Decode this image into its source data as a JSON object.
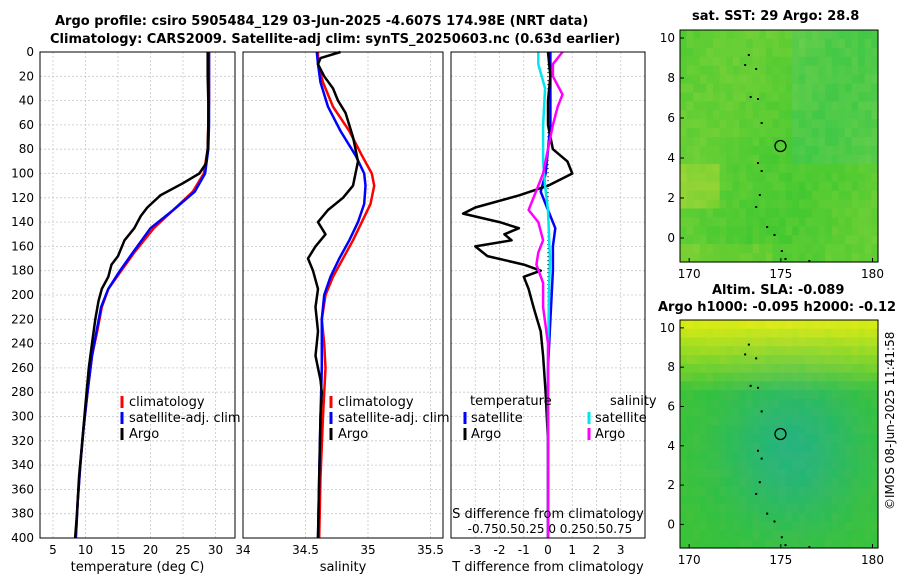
{
  "titles": {
    "line1": "Argo profile: csiro 5905484_129 03-Jun-2025 -4.607S 174.98E (NRT data)",
    "line2": "Climatology: CARS2009. Satellite-adj clim: synTS_20250603.nc (0.63d earlier)",
    "sst": "sat. SST: 29 Argo: 28.8",
    "sla1": "Altim. SLA: -0.089",
    "sla2": "Argo h1000: -0.095 h2000: -0.12"
  },
  "watermark": "©IMOS 08-Jun-2025 11:41:58",
  "colors": {
    "climatology": "#ff0000",
    "satellite": "#0000ff",
    "argo": "#000000",
    "sal_satellite": "#00e5ee",
    "sal_argo": "#ff00ff"
  },
  "chart_data": [
    {
      "type": "line",
      "name": "temperature",
      "xlabel": "temperature (deg C)",
      "xlim": [
        3,
        33
      ],
      "ylim": [
        0,
        400
      ],
      "xticks": [
        5,
        10,
        15,
        20,
        25,
        30
      ],
      "yticks": [
        0,
        20,
        40,
        60,
        80,
        100,
        120,
        140,
        160,
        180,
        200,
        220,
        240,
        260,
        280,
        300,
        320,
        340,
        360,
        380,
        400
      ],
      "legend": [
        "climatology",
        "satellite-adj. clim",
        "Argo"
      ],
      "series": [
        {
          "name": "climatology",
          "points": [
            [
              29.0,
              0
            ],
            [
              29.0,
              20
            ],
            [
              29.0,
              40
            ],
            [
              28.9,
              60
            ],
            [
              28.8,
              80
            ],
            [
              28.2,
              100
            ],
            [
              26.5,
              115
            ],
            [
              23.5,
              130
            ],
            [
              20.5,
              145
            ],
            [
              17.5,
              165
            ],
            [
              15.5,
              180
            ],
            [
              13.5,
              195
            ],
            [
              12.5,
              210
            ],
            [
              11.8,
              230
            ],
            [
              11.0,
              250
            ],
            [
              10.3,
              280
            ],
            [
              9.7,
              310
            ],
            [
              9.2,
              340
            ],
            [
              8.8,
              370
            ],
            [
              8.5,
              400
            ]
          ]
        },
        {
          "name": "satellite-adj. clim",
          "points": [
            [
              29.0,
              0
            ],
            [
              29.0,
              20
            ],
            [
              29.0,
              40
            ],
            [
              29.0,
              60
            ],
            [
              28.9,
              80
            ],
            [
              28.4,
              100
            ],
            [
              26.8,
              115
            ],
            [
              23.5,
              130
            ],
            [
              20.0,
              145
            ],
            [
              17.3,
              165
            ],
            [
              15.3,
              180
            ],
            [
              13.5,
              195
            ],
            [
              12.4,
              210
            ],
            [
              11.7,
              230
            ],
            [
              11.0,
              250
            ],
            [
              10.3,
              280
            ],
            [
              9.7,
              310
            ],
            [
              9.2,
              340
            ],
            [
              8.8,
              370
            ],
            [
              8.5,
              400
            ]
          ]
        },
        {
          "name": "Argo",
          "points": [
            [
              28.8,
              0
            ],
            [
              28.8,
              20
            ],
            [
              28.9,
              40
            ],
            [
              28.9,
              60
            ],
            [
              28.8,
              80
            ],
            [
              28.5,
              92
            ],
            [
              27.5,
              100
            ],
            [
              25.0,
              108
            ],
            [
              21.5,
              118
            ],
            [
              19.5,
              128
            ],
            [
              18.5,
              135
            ],
            [
              17.5,
              145
            ],
            [
              16.0,
              155
            ],
            [
              15.0,
              168
            ],
            [
              14.0,
              175
            ],
            [
              13.5,
              185
            ],
            [
              12.5,
              195
            ],
            [
              12.0,
              205
            ],
            [
              11.5,
              220
            ],
            [
              11.0,
              240
            ],
            [
              10.5,
              260
            ],
            [
              10.0,
              290
            ],
            [
              9.5,
              320
            ],
            [
              9.0,
              350
            ],
            [
              8.7,
              380
            ],
            [
              8.4,
              400
            ]
          ]
        }
      ]
    },
    {
      "type": "line",
      "name": "salinity",
      "xlabel": "salinity",
      "xlim": [
        34,
        35.6
      ],
      "ylim": [
        0,
        400
      ],
      "xticks": [
        34,
        34.5,
        35,
        35.5
      ],
      "yticks": [
        0,
        20,
        40,
        60,
        80,
        100,
        120,
        140,
        160,
        180,
        200,
        220,
        240,
        260,
        280,
        300,
        320,
        340,
        360,
        380,
        400
      ],
      "legend": [
        "climatology",
        "satellite-adj. clim",
        "Argo"
      ],
      "series": [
        {
          "name": "climatology",
          "points": [
            [
              34.6,
              0
            ],
            [
              34.6,
              10
            ],
            [
              34.64,
              25
            ],
            [
              34.72,
              45
            ],
            [
              34.85,
              65
            ],
            [
              34.95,
              85
            ],
            [
              35.03,
              100
            ],
            [
              35.05,
              110
            ],
            [
              35.02,
              125
            ],
            [
              34.95,
              140
            ],
            [
              34.88,
              155
            ],
            [
              34.8,
              170
            ],
            [
              34.72,
              185
            ],
            [
              34.66,
              200
            ],
            [
              34.63,
              220
            ],
            [
              34.65,
              240
            ],
            [
              34.66,
              260
            ],
            [
              34.64,
              300
            ],
            [
              34.62,
              350
            ],
            [
              34.61,
              400
            ]
          ]
        },
        {
          "name": "satellite-adj. clim",
          "points": [
            [
              34.59,
              0
            ],
            [
              34.6,
              10
            ],
            [
              34.62,
              25
            ],
            [
              34.68,
              45
            ],
            [
              34.78,
              65
            ],
            [
              34.9,
              85
            ],
            [
              34.97,
              100
            ],
            [
              34.98,
              110
            ],
            [
              34.97,
              125
            ],
            [
              34.92,
              140
            ],
            [
              34.85,
              155
            ],
            [
              34.77,
              170
            ],
            [
              34.7,
              185
            ],
            [
              34.65,
              200
            ],
            [
              34.63,
              220
            ],
            [
              34.63,
              240
            ],
            [
              34.63,
              260
            ],
            [
              34.62,
              300
            ],
            [
              34.61,
              350
            ],
            [
              34.6,
              400
            ]
          ]
        },
        {
          "name": "Argo",
          "points": [
            [
              34.78,
              0
            ],
            [
              34.62,
              5
            ],
            [
              34.6,
              10
            ],
            [
              34.65,
              20
            ],
            [
              34.72,
              30
            ],
            [
              34.76,
              40
            ],
            [
              34.82,
              50
            ],
            [
              34.88,
              70
            ],
            [
              34.92,
              90
            ],
            [
              34.88,
              110
            ],
            [
              34.8,
              120
            ],
            [
              34.68,
              130
            ],
            [
              34.6,
              140
            ],
            [
              34.66,
              150
            ],
            [
              34.58,
              160
            ],
            [
              34.52,
              170
            ],
            [
              34.56,
              180
            ],
            [
              34.6,
              195
            ],
            [
              34.58,
              210
            ],
            [
              34.6,
              230
            ],
            [
              34.58,
              250
            ],
            [
              34.62,
              270
            ],
            [
              34.63,
              280
            ],
            [
              34.62,
              300
            ],
            [
              34.61,
              350
            ],
            [
              34.6,
              400
            ]
          ]
        }
      ]
    },
    {
      "type": "line",
      "name": "differences",
      "xlabel": "T difference from climatology",
      "top_label": "S difference from climatology",
      "top_ticks": "-0.750.50.25 0  0.250.50.75",
      "xlim": [
        -4,
        4
      ],
      "ylim": [
        0,
        400
      ],
      "xticks": [
        -3,
        -2,
        -1,
        0,
        1,
        2,
        3
      ],
      "yticks": [
        0,
        20,
        40,
        60,
        80,
        100,
        120,
        140,
        160,
        180,
        200,
        220,
        240,
        260,
        280,
        300,
        320,
        340,
        360,
        380,
        400
      ],
      "legend_headers": [
        "temperature",
        "salinity"
      ],
      "legend_t": [
        "satellite",
        "Argo"
      ],
      "legend_s": [
        "satellite",
        "Argo"
      ],
      "series": [
        {
          "name": "T satellite",
          "points": [
            [
              0.1,
              0
            ],
            [
              0.1,
              20
            ],
            [
              0.1,
              60
            ],
            [
              0.0,
              80
            ],
            [
              -0.1,
              100
            ],
            [
              -0.3,
              115
            ],
            [
              0.0,
              130
            ],
            [
              0.3,
              145
            ],
            [
              0.2,
              160
            ],
            [
              0.2,
              180
            ],
            [
              0.1,
              220
            ],
            [
              0.0,
              260
            ],
            [
              0.0,
              300
            ],
            [
              0.0,
              350
            ],
            [
              0.0,
              400
            ]
          ]
        },
        {
          "name": "T Argo",
          "points": [
            [
              0.0,
              0
            ],
            [
              0.1,
              20
            ],
            [
              0.0,
              40
            ],
            [
              0.0,
              60
            ],
            [
              0.2,
              80
            ],
            [
              0.8,
              90
            ],
            [
              1.0,
              100
            ],
            [
              0.0,
              110
            ],
            [
              -1.2,
              118
            ],
            [
              -3.0,
              128
            ],
            [
              -3.5,
              133
            ],
            [
              -2.0,
              140
            ],
            [
              -1.2,
              145
            ],
            [
              -1.8,
              150
            ],
            [
              -1.5,
              155
            ],
            [
              -3.0,
              160
            ],
            [
              -2.5,
              168
            ],
            [
              -1.0,
              175
            ],
            [
              -0.3,
              180
            ],
            [
              -1.0,
              185
            ],
            [
              -0.8,
              195
            ],
            [
              -0.6,
              210
            ],
            [
              -0.3,
              230
            ],
            [
              -0.2,
              250
            ],
            [
              -0.1,
              280
            ],
            [
              0.0,
              320
            ],
            [
              0.0,
              360
            ],
            [
              0.0,
              400
            ]
          ]
        },
        {
          "name": "S satellite",
          "points": [
            [
              -0.1,
              0
            ],
            [
              -0.1,
              10
            ],
            [
              -0.03,
              30
            ],
            [
              -0.05,
              60
            ],
            [
              -0.05,
              90
            ],
            [
              -0.03,
              110
            ],
            [
              0.0,
              130
            ],
            [
              0.01,
              150
            ],
            [
              0.02,
              170
            ],
            [
              0.01,
              200
            ],
            [
              0.0,
              250
            ],
            [
              0.0,
              300
            ],
            [
              0.0,
              400
            ]
          ]
        },
        {
          "name": "S Argo",
          "points": [
            [
              0.15,
              0
            ],
            [
              0.05,
              10
            ],
            [
              0.05,
              20
            ],
            [
              0.15,
              35
            ],
            [
              0.1,
              45
            ],
            [
              0.05,
              60
            ],
            [
              0.0,
              80
            ],
            [
              -0.05,
              100
            ],
            [
              -0.1,
              110
            ],
            [
              -0.15,
              120
            ],
            [
              -0.2,
              130
            ],
            [
              -0.1,
              140
            ],
            [
              -0.05,
              155
            ],
            [
              -0.1,
              165
            ],
            [
              -0.12,
              175
            ],
            [
              -0.05,
              190
            ],
            [
              -0.05,
              210
            ],
            [
              0.0,
              240
            ],
            [
              0.0,
              280
            ],
            [
              0.0,
              400
            ]
          ]
        }
      ]
    },
    {
      "type": "heatmap",
      "name": "sst_map",
      "title": "sat. SST: 29 Argo: 28.8",
      "xlim": [
        169.5,
        180.3
      ],
      "ylim": [
        -1.2,
        10.4
      ],
      "xticks": [
        170,
        175,
        180
      ],
      "yticks": [
        0,
        2,
        4,
        6,
        8,
        10
      ],
      "marker": [
        174.98,
        4.6
      ]
    },
    {
      "type": "heatmap",
      "name": "sla_map",
      "title": "Altim. SLA: -0.089",
      "xlim": [
        169.5,
        180.3
      ],
      "ylim": [
        -1.2,
        10.4
      ],
      "xticks": [
        170,
        175,
        180
      ],
      "yticks": [
        0,
        2,
        4,
        6,
        8,
        10
      ],
      "marker": [
        174.98,
        4.6
      ]
    }
  ]
}
